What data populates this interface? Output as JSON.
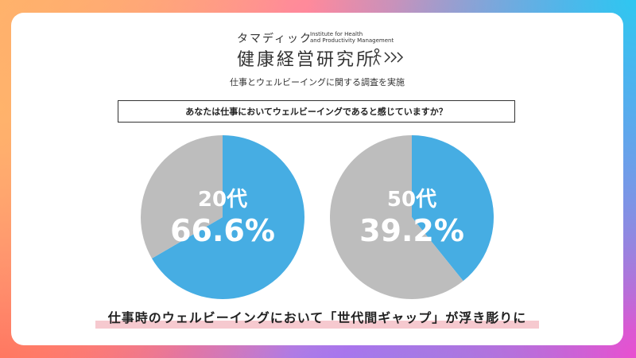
{
  "header": {
    "logo_kana": "タマディック",
    "logo_en_line1": "Institute for Health",
    "logo_en_line2": "and Productivity Management",
    "logo_kanji": "健康経営研究所",
    "subtitle": "仕事とウェルビーイングに関する調査を実施"
  },
  "question": "あなたは仕事においてウェルビーイングであると感じていますか？",
  "conclusion": "仕事時のウェルビーイングにおいて「世代間ギャップ」が浮き彫りに",
  "colors": {
    "yes": "#46ade3",
    "no": "#bdbdbd",
    "highlight": "#f6c9cf"
  },
  "chart_data": [
    {
      "type": "pie",
      "label": "20代",
      "value_label": "66.6%",
      "slices": [
        {
          "value": 66.6,
          "color": "#46ade3"
        },
        {
          "value": 33.4,
          "color": "#bdbdbd"
        }
      ]
    },
    {
      "type": "pie",
      "label": "50代",
      "value_label": "39.2%",
      "slices": [
        {
          "value": 39.2,
          "color": "#46ade3"
        },
        {
          "value": 60.8,
          "color": "#bdbdbd"
        }
      ]
    }
  ]
}
